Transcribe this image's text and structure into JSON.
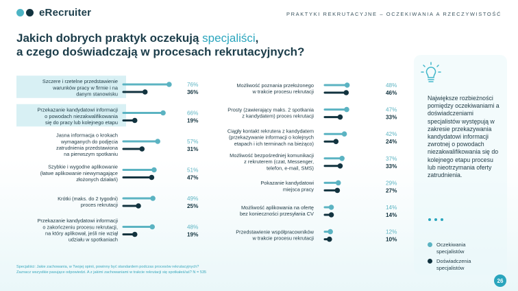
{
  "header": {
    "brand": "eRecruiter",
    "section": "PRAKTYKI REKRUTACYJNE – OCZEKIWANIA A RZECZYWISTOŚĆ"
  },
  "title": {
    "part1": "Jakich dobrych praktyk oczekują ",
    "highlight": "specjaliści",
    "part2": ",",
    "line2": "a czego doświadczają w procesach rekrutacyjnych?"
  },
  "chart_data": {
    "type": "bar",
    "orientation": "horizontal",
    "unit": "%",
    "series_colors": [
      "#5bb3c2",
      "#12333f"
    ],
    "left_column": [
      {
        "label": [
          "Szczere i rzetelne przedstawienie",
          "warunków pracy w firmie i na",
          "danym stanowisku"
        ],
        "expectation": 76,
        "experience": 36,
        "highlighted": true
      },
      {
        "label": [
          "Przekazanie kandydatowi informacji",
          "o powodach niezakwalifikowania",
          "się do pracy lub kolejnego etapu"
        ],
        "expectation": 66,
        "experience": 19,
        "highlighted": true
      },
      {
        "label": [
          "Jasna informacja o krokach",
          "wymaganych do podjęcia",
          "zatrudnienia przedstawiona",
          "na pierwszym spotkaniu"
        ],
        "expectation": 57,
        "experience": 31,
        "highlighted": false
      },
      {
        "label": [
          "Szybkie i wygodne aplikowanie",
          "(łatwe aplikowanie niewymagające",
          "złożonych działań)"
        ],
        "expectation": 51,
        "experience": 47,
        "highlighted": false
      },
      {
        "label": [
          "Krótki (maks. do 2 tygodni)",
          "proces rekrutacji"
        ],
        "expectation": 49,
        "experience": 25,
        "highlighted": false
      },
      {
        "label": [
          "Przekazanie kandydatowi informacji",
          "o zakończeniu procesu rekrutacji,",
          "na który aplikował, jeśli nie wziął",
          "udziału w spotkaniach"
        ],
        "expectation": 48,
        "experience": 19,
        "highlighted": false
      }
    ],
    "right_column": [
      {
        "label": [
          "Możliwość poznania przełożonego",
          "w trakcie procesu rekrutacji"
        ],
        "expectation": 48,
        "experience": 46
      },
      {
        "label": [
          "Prosty (zawierający maks. 2 spotkania",
          "z kandydatem) proces rekrutacji"
        ],
        "expectation": 47,
        "experience": 33
      },
      {
        "label": [
          "Ciągły kontakt rekrutera z kandydatem",
          "(przekazywanie informacji o kolejnych",
          "etapach i ich terminach na bieżąco)"
        ],
        "expectation": 42,
        "experience": 24
      },
      {
        "label": [
          "Możliwość bezpośredniej komunikacji",
          "z rekruterem (czat, Messenger,",
          "telefon, e-mail, SMS)"
        ],
        "expectation": 37,
        "experience": 33
      },
      {
        "label": [
          "Pokazanie kandydatowi",
          "miejsca pracy"
        ],
        "expectation": 29,
        "experience": 27
      },
      {
        "label": [
          "Możliwość aplikowania na ofertę",
          "bez konieczności przesyłania CV"
        ],
        "expectation": 14,
        "experience": 14
      },
      {
        "label": [
          "Przedstawienie współpracowników",
          "w trakcie procesu rekrutacji"
        ],
        "expectation": 12,
        "experience": 10
      }
    ],
    "legend": [
      {
        "name": "Oczekiwania specjalistów",
        "lines": [
          "Oczekiwania",
          "specjalistów"
        ],
        "color": "#5bb3c2"
      },
      {
        "name": "Doświadczenia specjalistów",
        "lines": [
          "Doświadczenia",
          "specjalistów"
        ],
        "color": "#12333f"
      }
    ]
  },
  "insight": "Największe rozbieżności pomiędzy oczekiwaniami a doświadczeniami specjalistów występują w zakresie przekazywania kandydatowi informacji zwrotnej o powodach niezakwalifikowania się do kolejnego etapu procesu lub nieotrzymania oferty zatrudnienia.",
  "footnote": {
    "line1": "Specjaliści: Jakie zachowania, w Twojej opinii, powinny być standardem podczas procesów rekrutacyjnych?",
    "line2": "Zaznacz wszystkie pasujące odpowiedzi. A z jakimi zachowaniami w trakcie rekrutacji się spotkałeś/aś? N = 535"
  },
  "page_number": "26",
  "colors": {
    "accent": "#2aa5bd",
    "dark": "#12333f",
    "brand_dot_light": "#4db4c4"
  }
}
